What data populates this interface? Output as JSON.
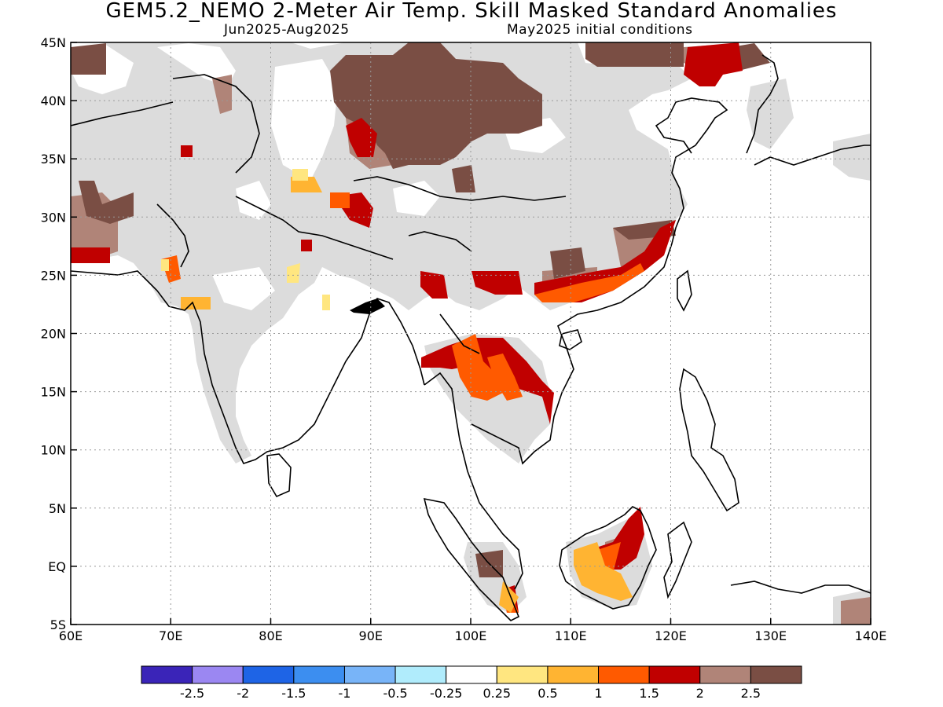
{
  "header": {
    "title": "GEM5.2_NEMO 2-Meter Air Temp. Skill Masked Standard Anomalies",
    "period": "Jun2025-Aug2025",
    "init": "May2025 initial conditions"
  },
  "map": {
    "lon_range": [
      60,
      140
    ],
    "lat_range": [
      -5,
      45
    ],
    "lon_ticks": [
      "60E",
      "70E",
      "80E",
      "90E",
      "100E",
      "110E",
      "120E",
      "130E",
      "140E"
    ],
    "lat_ticks": [
      "45N",
      "40N",
      "35N",
      "30N",
      "25N",
      "20N",
      "15N",
      "10N",
      "5N",
      "EQ",
      "5S"
    ],
    "colors": {
      "masked_gray": "#dcdcdc",
      "light_brown": "#b08478",
      "dark_brown": "#7a4e44",
      "dark_red": "#c00000",
      "orange_red": "#ff5a00",
      "orange": "#ffb432",
      "yellow": "#ffe680"
    }
  },
  "colorbar": {
    "labels": [
      "-2.5",
      "-2",
      "-1.5",
      "-1",
      "-0.5",
      "-0.25",
      "0.25",
      "0.5",
      "1",
      "1.5",
      "2",
      "2.5"
    ],
    "colors": [
      "#3a24b8",
      "#9b87f2",
      "#1e64e6",
      "#3c8ef0",
      "#78b4f8",
      "#b0ecfc",
      "#ffffff",
      "#ffe680",
      "#ffb432",
      "#ff5a00",
      "#c00000",
      "#b08478",
      "#7a4e44"
    ]
  }
}
